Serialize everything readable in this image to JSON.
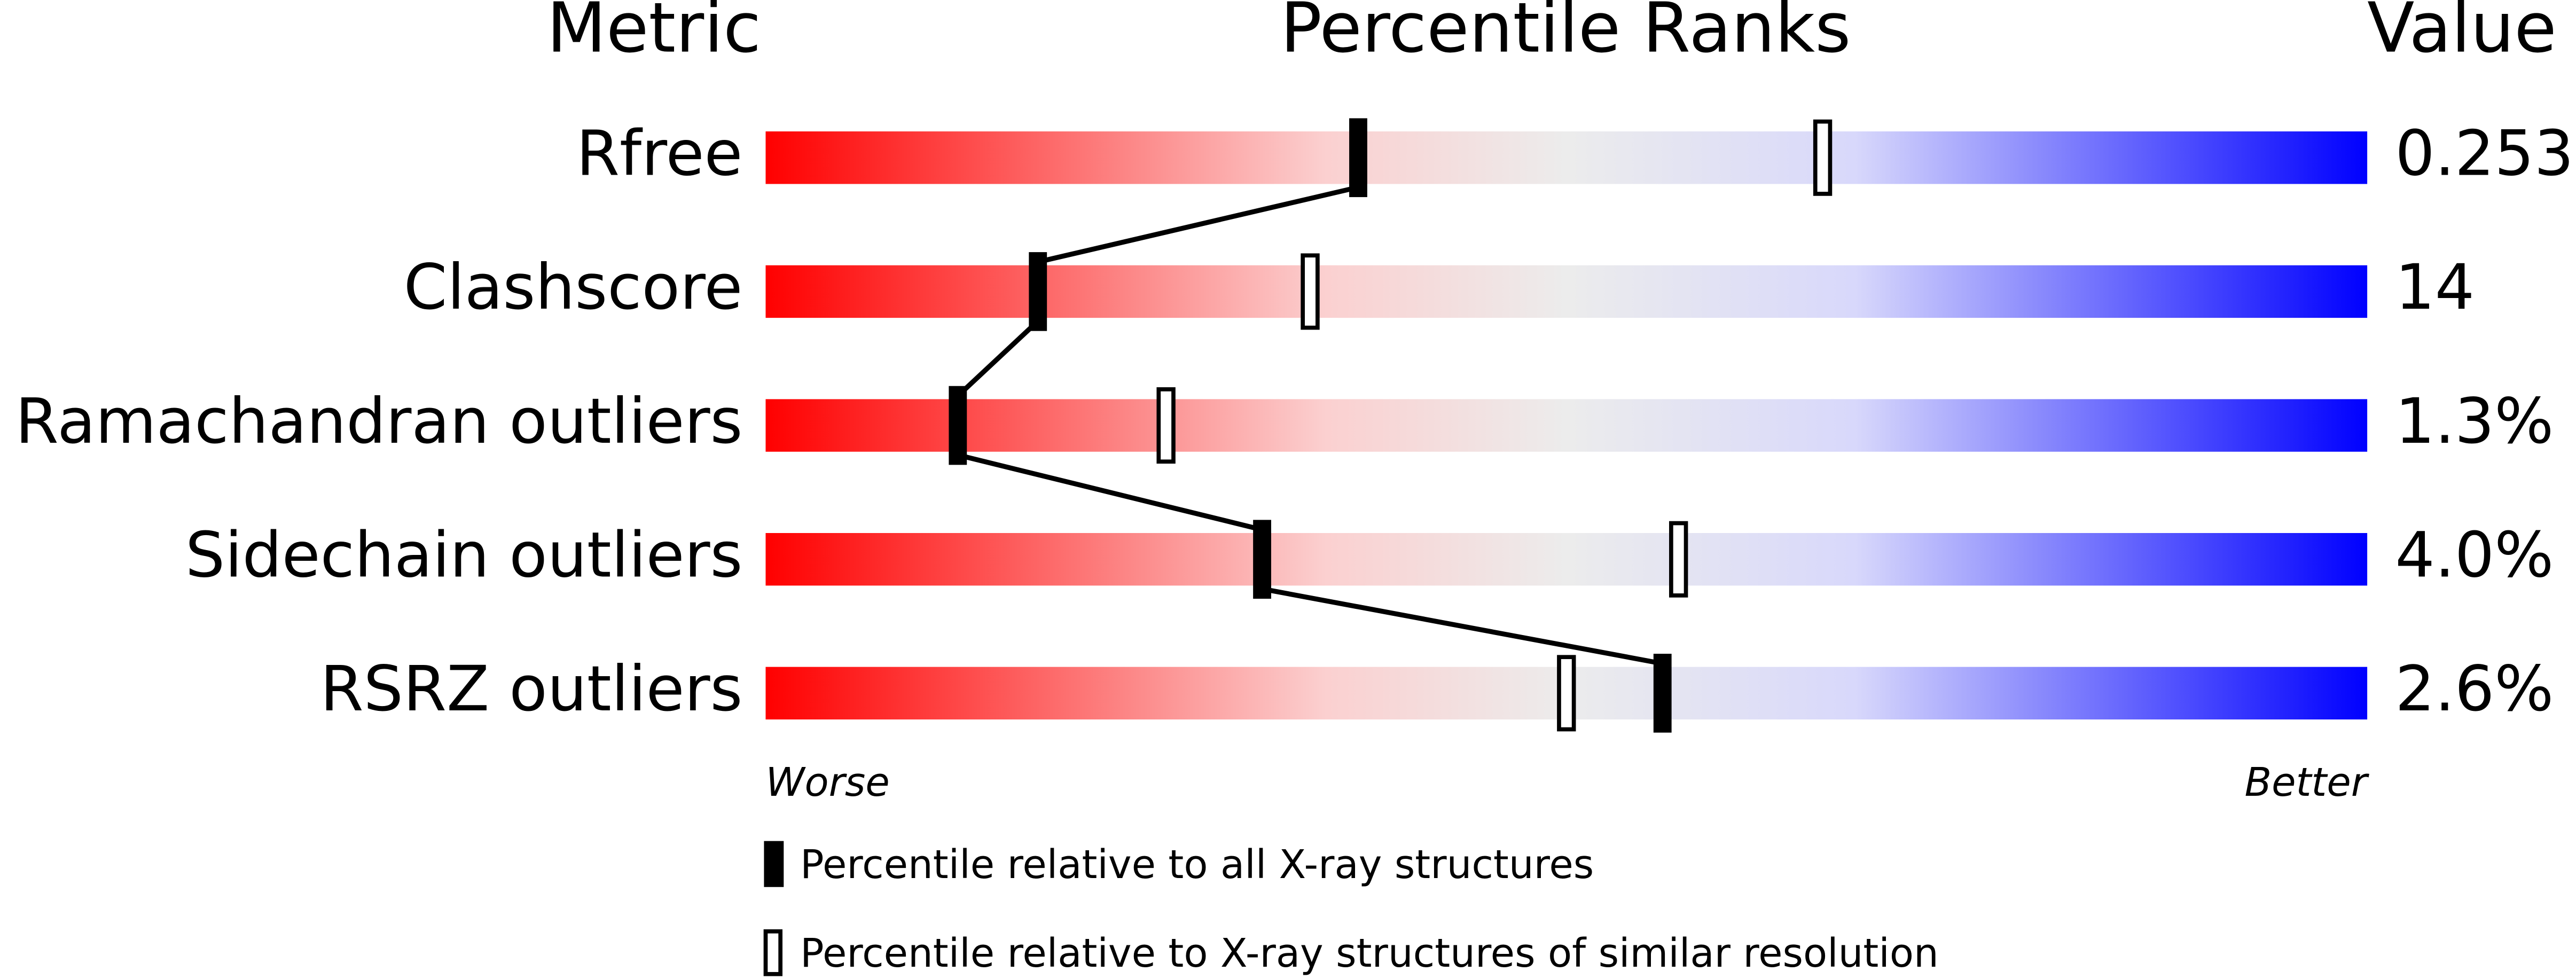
{
  "chart_data": {
    "type": "percentile",
    "header_metric": "Metric",
    "header_ranks": "Percentile Ranks",
    "header_value": "Value",
    "categories": [
      "Rfree",
      "Clashscore",
      "Ramachandran outliers",
      "Sidechain outliers",
      "RSRZ outliers"
    ],
    "metric_values": [
      "0.253",
      "14",
      "1.3%",
      "4.0%",
      "2.6%"
    ],
    "xlim": [
      0,
      100
    ],
    "worse_label": "Worse",
    "better_label": "Better",
    "series": [
      {
        "name": "Percentile relative to all X-ray structures",
        "color": "#000000",
        "filled": true,
        "values": [
          37,
          17,
          12,
          31,
          56
        ]
      },
      {
        "name": "Percentile relative to X-ray structures of similar resolution",
        "color": "#000000",
        "filled": false,
        "values": [
          66,
          34,
          25,
          57,
          50
        ]
      }
    ]
  }
}
